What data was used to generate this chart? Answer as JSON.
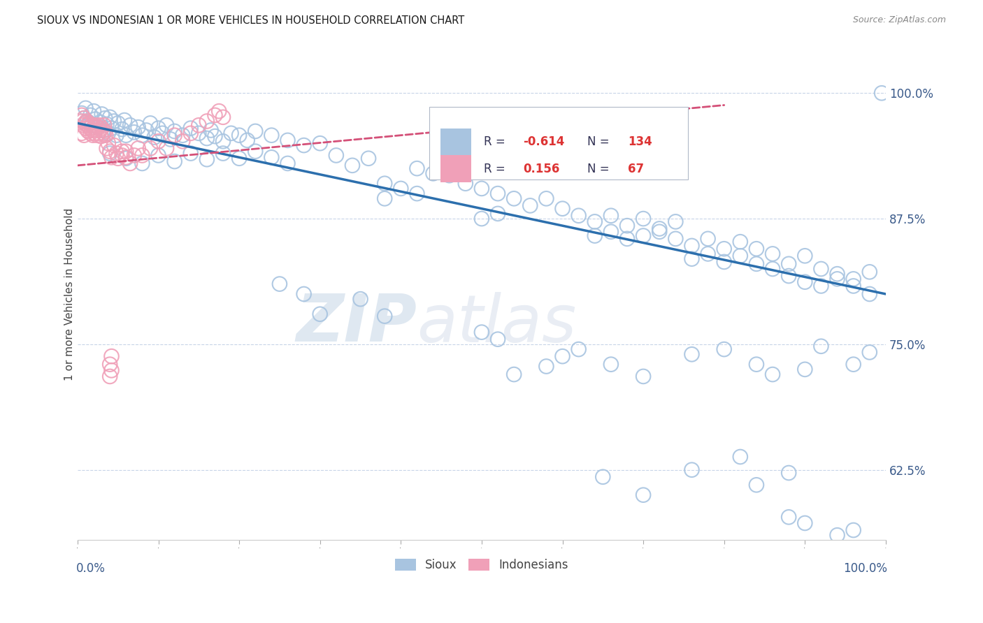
{
  "title": "SIOUX VS INDONESIAN 1 OR MORE VEHICLES IN HOUSEHOLD CORRELATION CHART",
  "source": "Source: ZipAtlas.com",
  "ylabel": "1 or more Vehicles in Household",
  "xlim": [
    0.0,
    1.0
  ],
  "ylim": [
    0.555,
    1.045
  ],
  "yticks": [
    0.625,
    0.75,
    0.875,
    1.0
  ],
  "ytick_labels": [
    "62.5%",
    "75.0%",
    "87.5%",
    "100.0%"
  ],
  "watermark_zip": "ZIP",
  "watermark_atlas": "atlas",
  "legend_r_sioux": "-0.614",
  "legend_n_sioux": "134",
  "legend_r_indonesian": "0.156",
  "legend_n_indonesian": "67",
  "sioux_color": "#a8c4e0",
  "indonesian_color": "#f0a0b8",
  "sioux_line_color": "#2c6fad",
  "indonesian_line_color": "#d45078",
  "background_color": "#ffffff",
  "grid_color": "#c8d4e8",
  "sioux_points": [
    [
      0.005,
      0.98
    ],
    [
      0.008,
      0.975
    ],
    [
      0.01,
      0.985
    ],
    [
      0.012,
      0.972
    ],
    [
      0.015,
      0.97
    ],
    [
      0.016,
      0.978
    ],
    [
      0.018,
      0.968
    ],
    [
      0.02,
      0.982
    ],
    [
      0.022,
      0.974
    ],
    [
      0.025,
      0.966
    ],
    [
      0.028,
      0.971
    ],
    [
      0.03,
      0.979
    ],
    [
      0.032,
      0.963
    ],
    [
      0.034,
      0.975
    ],
    [
      0.036,
      0.969
    ],
    [
      0.038,
      0.96
    ],
    [
      0.04,
      0.976
    ],
    [
      0.042,
      0.965
    ],
    [
      0.045,
      0.972
    ],
    [
      0.048,
      0.958
    ],
    [
      0.05,
      0.97
    ],
    [
      0.055,
      0.964
    ],
    [
      0.058,
      0.973
    ],
    [
      0.06,
      0.958
    ],
    [
      0.065,
      0.968
    ],
    [
      0.07,
      0.961
    ],
    [
      0.075,
      0.966
    ],
    [
      0.08,
      0.958
    ],
    [
      0.085,
      0.963
    ],
    [
      0.09,
      0.97
    ],
    [
      0.095,
      0.956
    ],
    [
      0.1,
      0.965
    ],
    [
      0.105,
      0.96
    ],
    [
      0.11,
      0.968
    ],
    [
      0.115,
      0.954
    ],
    [
      0.12,
      0.962
    ],
    [
      0.13,
      0.958
    ],
    [
      0.14,
      0.965
    ],
    [
      0.15,
      0.96
    ],
    [
      0.16,
      0.955
    ],
    [
      0.165,
      0.963
    ],
    [
      0.17,
      0.957
    ],
    [
      0.18,
      0.952
    ],
    [
      0.19,
      0.96
    ],
    [
      0.2,
      0.958
    ],
    [
      0.21,
      0.953
    ],
    [
      0.22,
      0.962
    ],
    [
      0.24,
      0.958
    ],
    [
      0.26,
      0.953
    ],
    [
      0.28,
      0.948
    ],
    [
      0.3,
      0.95
    ],
    [
      0.04,
      0.94
    ],
    [
      0.06,
      0.935
    ],
    [
      0.08,
      0.93
    ],
    [
      0.1,
      0.938
    ],
    [
      0.12,
      0.932
    ],
    [
      0.14,
      0.94
    ],
    [
      0.16,
      0.934
    ],
    [
      0.18,
      0.94
    ],
    [
      0.2,
      0.935
    ],
    [
      0.22,
      0.942
    ],
    [
      0.24,
      0.936
    ],
    [
      0.26,
      0.93
    ],
    [
      0.32,
      0.938
    ],
    [
      0.34,
      0.928
    ],
    [
      0.36,
      0.935
    ],
    [
      0.42,
      0.925
    ],
    [
      0.44,
      0.92
    ],
    [
      0.38,
      0.91
    ],
    [
      0.4,
      0.905
    ],
    [
      0.46,
      0.918
    ],
    [
      0.48,
      0.91
    ],
    [
      0.5,
      0.905
    ],
    [
      0.38,
      0.895
    ],
    [
      0.42,
      0.9
    ],
    [
      0.52,
      0.9
    ],
    [
      0.54,
      0.895
    ],
    [
      0.56,
      0.888
    ],
    [
      0.58,
      0.895
    ],
    [
      0.6,
      0.885
    ],
    [
      0.62,
      0.878
    ],
    [
      0.5,
      0.875
    ],
    [
      0.52,
      0.88
    ],
    [
      0.64,
      0.872
    ],
    [
      0.66,
      0.878
    ],
    [
      0.68,
      0.868
    ],
    [
      0.7,
      0.875
    ],
    [
      0.72,
      0.865
    ],
    [
      0.74,
      0.872
    ],
    [
      0.64,
      0.858
    ],
    [
      0.66,
      0.862
    ],
    [
      0.68,
      0.855
    ],
    [
      0.7,
      0.858
    ],
    [
      0.72,
      0.862
    ],
    [
      0.74,
      0.855
    ],
    [
      0.76,
      0.848
    ],
    [
      0.78,
      0.855
    ],
    [
      0.8,
      0.845
    ],
    [
      0.82,
      0.852
    ],
    [
      0.84,
      0.845
    ],
    [
      0.86,
      0.84
    ],
    [
      0.76,
      0.835
    ],
    [
      0.78,
      0.84
    ],
    [
      0.8,
      0.832
    ],
    [
      0.82,
      0.838
    ],
    [
      0.84,
      0.83
    ],
    [
      0.86,
      0.825
    ],
    [
      0.88,
      0.83
    ],
    [
      0.9,
      0.838
    ],
    [
      0.92,
      0.825
    ],
    [
      0.94,
      0.82
    ],
    [
      0.96,
      0.815
    ],
    [
      0.98,
      0.822
    ],
    [
      0.88,
      0.818
    ],
    [
      0.9,
      0.812
    ],
    [
      0.92,
      0.808
    ],
    [
      0.94,
      0.815
    ],
    [
      0.96,
      0.808
    ],
    [
      0.98,
      0.8
    ],
    [
      0.995,
      1.0
    ],
    [
      0.25,
      0.81
    ],
    [
      0.28,
      0.8
    ],
    [
      0.3,
      0.78
    ],
    [
      0.35,
      0.795
    ],
    [
      0.38,
      0.778
    ],
    [
      0.5,
      0.762
    ],
    [
      0.52,
      0.755
    ],
    [
      0.54,
      0.72
    ],
    [
      0.58,
      0.728
    ],
    [
      0.6,
      0.738
    ],
    [
      0.62,
      0.745
    ],
    [
      0.66,
      0.73
    ],
    [
      0.7,
      0.718
    ],
    [
      0.76,
      0.74
    ],
    [
      0.8,
      0.745
    ],
    [
      0.84,
      0.73
    ],
    [
      0.86,
      0.72
    ],
    [
      0.9,
      0.725
    ],
    [
      0.92,
      0.748
    ],
    [
      0.96,
      0.73
    ],
    [
      0.98,
      0.742
    ],
    [
      0.65,
      0.618
    ],
    [
      0.7,
      0.6
    ],
    [
      0.76,
      0.625
    ],
    [
      0.82,
      0.638
    ],
    [
      0.84,
      0.61
    ],
    [
      0.88,
      0.622
    ],
    [
      0.88,
      0.578
    ],
    [
      0.9,
      0.572
    ],
    [
      0.94,
      0.56
    ],
    [
      0.96,
      0.565
    ]
  ],
  "indonesian_points": [
    [
      0.005,
      0.978
    ],
    [
      0.006,
      0.972
    ],
    [
      0.007,
      0.968
    ],
    [
      0.008,
      0.975
    ],
    [
      0.009,
      0.97
    ],
    [
      0.01,
      0.965
    ],
    [
      0.011,
      0.972
    ],
    [
      0.012,
      0.968
    ],
    [
      0.013,
      0.962
    ],
    [
      0.014,
      0.97
    ],
    [
      0.015,
      0.965
    ],
    [
      0.016,
      0.96
    ],
    [
      0.017,
      0.968
    ],
    [
      0.018,
      0.963
    ],
    [
      0.019,
      0.958
    ],
    [
      0.02,
      0.966
    ],
    [
      0.021,
      0.96
    ],
    [
      0.022,
      0.968
    ],
    [
      0.023,
      0.963
    ],
    [
      0.024,
      0.958
    ],
    [
      0.025,
      0.966
    ],
    [
      0.026,
      0.96
    ],
    [
      0.027,
      0.968
    ],
    [
      0.028,
      0.963
    ],
    [
      0.029,
      0.957
    ],
    [
      0.03,
      0.965
    ],
    [
      0.032,
      0.96
    ],
    [
      0.033,
      0.968
    ],
    [
      0.034,
      0.962
    ],
    [
      0.035,
      0.958
    ],
    [
      0.036,
      0.945
    ],
    [
      0.038,
      0.95
    ],
    [
      0.04,
      0.942
    ],
    [
      0.042,
      0.936
    ],
    [
      0.045,
      0.948
    ],
    [
      0.048,
      0.94
    ],
    [
      0.05,
      0.935
    ],
    [
      0.055,
      0.942
    ],
    [
      0.06,
      0.936
    ],
    [
      0.065,
      0.93
    ],
    [
      0.07,
      0.938
    ],
    [
      0.075,
      0.945
    ],
    [
      0.08,
      0.938
    ],
    [
      0.09,
      0.945
    ],
    [
      0.1,
      0.952
    ],
    [
      0.11,
      0.945
    ],
    [
      0.12,
      0.958
    ],
    [
      0.13,
      0.952
    ],
    [
      0.14,
      0.96
    ],
    [
      0.15,
      0.968
    ],
    [
      0.16,
      0.972
    ],
    [
      0.17,
      0.978
    ],
    [
      0.175,
      0.982
    ],
    [
      0.18,
      0.976
    ],
    [
      0.04,
      0.73
    ],
    [
      0.042,
      0.738
    ],
    [
      0.04,
      0.718
    ],
    [
      0.042,
      0.724
    ],
    [
      0.005,
      0.96
    ],
    [
      0.008,
      0.958
    ],
    [
      0.055,
      0.938
    ],
    [
      0.06,
      0.942
    ]
  ],
  "sioux_trendline": {
    "x_start": 0.0,
    "y_start": 0.97,
    "x_end": 1.0,
    "y_end": 0.8
  },
  "indonesian_trendline": {
    "x_start": 0.0,
    "y_start": 0.928,
    "x_end": 0.8,
    "y_end": 0.988
  }
}
